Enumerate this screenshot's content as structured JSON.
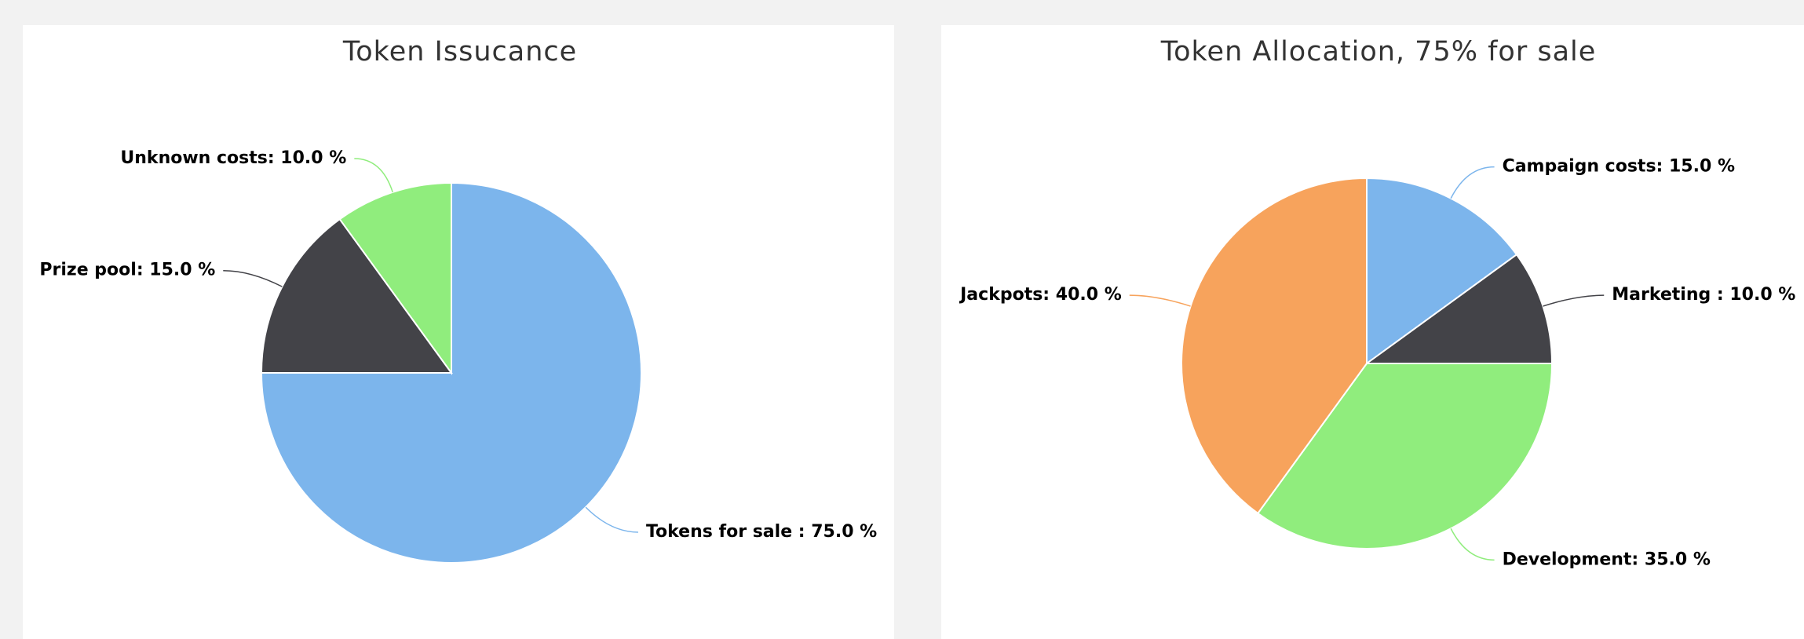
{
  "chart_data": [
    {
      "type": "pie",
      "title": "Token Issucance",
      "values": [
        75,
        15,
        10
      ],
      "value_labels": [
        "Tokens for sale : 75.0 %",
        "Prize pool: 15.0 %",
        "Unknown costs: 10.0 %"
      ],
      "colors": [
        "#7cb5ec",
        "#434348",
        "#90ed7d"
      ]
    },
    {
      "type": "pie",
      "title": "Token Allocation, 75% for sale",
      "values": [
        15,
        10,
        35,
        40
      ],
      "value_labels": [
        "Campaign costs: 15.0 %",
        "Marketing : 10.0 %",
        "Development: 35.0 %",
        "Jackpots: 40.0 %"
      ],
      "colors": [
        "#7cb5ec",
        "#434348",
        "#90ed7d",
        "#f7a35c"
      ]
    }
  ]
}
